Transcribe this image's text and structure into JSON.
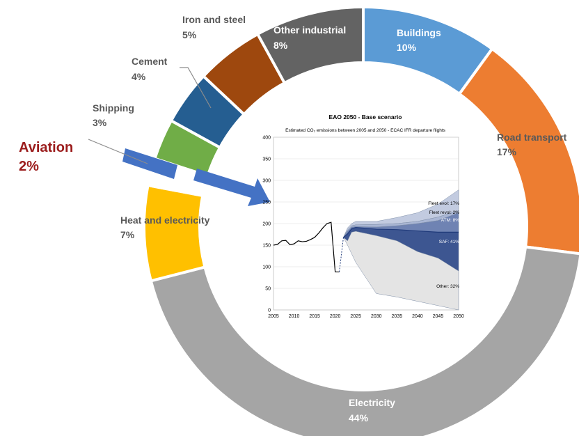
{
  "chart_data": [
    {
      "type": "donut",
      "segments": [
        {
          "id": "buildings",
          "label": "Buildings",
          "value": 10,
          "value_label": "10%",
          "color": "#5b9bd5"
        },
        {
          "id": "road",
          "label": "Road transport",
          "value": 17,
          "value_label": "17%",
          "color": "#ed7d31"
        },
        {
          "id": "electricity",
          "label": "Electricity",
          "value": 44,
          "value_label": "44%",
          "color": "#a5a5a5"
        },
        {
          "id": "heat",
          "label": "Heat and electricity",
          "value": 7,
          "value_label": "7%",
          "color": "#ffc000"
        },
        {
          "id": "aviation",
          "label": "Aviation",
          "value": 2,
          "value_label": "2%",
          "color": "#4472c4"
        },
        {
          "id": "shipping",
          "label": "Shipping",
          "value": 3,
          "value_label": "3%",
          "color": "#70ad47"
        },
        {
          "id": "cement",
          "label": "Cement",
          "value": 4,
          "value_label": "4%",
          "color": "#255e91"
        },
        {
          "id": "iron",
          "label": "Iron and steel",
          "value": 5,
          "value_label": "5%",
          "color": "#9e480e"
        },
        {
          "id": "other_ind",
          "label": "Other industrial",
          "value": 8,
          "value_label": "8%",
          "color": "#636363"
        }
      ]
    },
    {
      "type": "area",
      "title": "EAO 2050 - Base scenario",
      "subtitle": "Estimated CO₂ emissions between 2005 and 2050 - ECAC IFR departure flights",
      "ylim": [
        0,
        400
      ],
      "xlim": [
        2005,
        2050
      ],
      "y_ticks": [
        0,
        50,
        100,
        150,
        200,
        250,
        300,
        350,
        400
      ],
      "x_ticks": [
        2005,
        2010,
        2015,
        2020,
        2025,
        2030,
        2035,
        2040,
        2045,
        2050
      ],
      "history": {
        "x": [
          2005,
          2006,
          2007,
          2008,
          2009,
          2010,
          2011,
          2012,
          2013,
          2014,
          2015,
          2016,
          2017,
          2018,
          2019,
          2020,
          2021
        ],
        "y": [
          150,
          152,
          160,
          161,
          151,
          153,
          160,
          158,
          159,
          163,
          168,
          178,
          190,
          200,
          203,
          88,
          88
        ]
      },
      "dashed_link": {
        "x": [
          2021,
          2022
        ],
        "y": [
          88,
          168
        ]
      },
      "scenario": {
        "x": [
          2022,
          2023,
          2024,
          2025,
          2030,
          2035,
          2040,
          2045,
          2050
        ],
        "unmitigated": [
          168,
          190,
          200,
          205,
          205,
          214,
          225,
          245,
          278
        ],
        "after_fleet_1": [
          168,
          185,
          195,
          197,
          198,
          200,
          205,
          215,
          230
        ],
        "after_fleet_2": [
          168,
          182,
          192,
          193,
          192,
          195,
          200,
          207,
          225
        ],
        "after_atm": [
          168,
          176,
          188,
          191,
          187,
          186,
          183,
          180,
          180
        ],
        "after_saf": [
          168,
          170,
          182,
          186,
          180,
          165,
          155,
          150,
          145
        ],
        "net": [
          168,
          160,
          180,
          182,
          172,
          160,
          135,
          120,
          90
        ],
        "other_floor": [
          168,
          150,
          130,
          110,
          38,
          30,
          20,
          10,
          0
        ]
      },
      "band_labels": [
        "Fleet evol: 17%",
        "Fleet revol: 2%",
        "ATM: 8%",
        "SAF: 41%",
        "Other: 32%"
      ]
    }
  ]
}
